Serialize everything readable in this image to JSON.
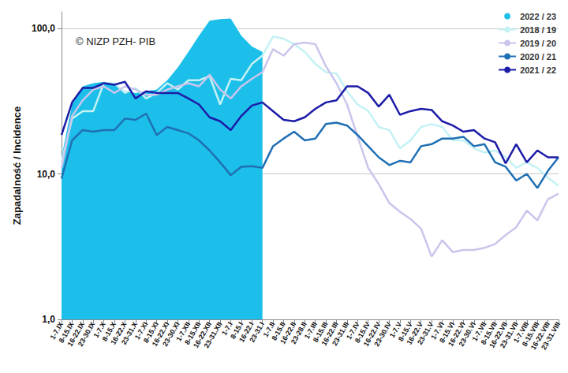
{
  "chart_data": {
    "type": "line",
    "y_label": "Zapadalność / Incidence",
    "annotation": "© NIZP PZH- PIB",
    "log": "y",
    "grid": true,
    "legend": "top-right",
    "ylim": [
      1,
      130
    ],
    "yticks": [
      {
        "value": 1,
        "label": "1,0"
      },
      {
        "value": 10,
        "label": "10,0"
      },
      {
        "value": 100,
        "label": "100,0"
      }
    ],
    "categories": [
      "1-7.IX",
      "8-15.IX",
      "16-22.IX",
      "23-30.IX",
      "1-7.X",
      "8-15.X",
      "16-22.X",
      "23-31.X",
      "1-7.XI",
      "8-15.XI",
      "16-22.XI",
      "23-30.XI",
      "1-7.XII",
      "8-15.XII",
      "16-22.XII",
      "23-31.XII",
      "1-7.I",
      "8-15.I",
      "16-22.I",
      "23-31.I",
      "1-7.II",
      "8-15.II",
      "16-22.II",
      "23-28.II",
      "1-7.III",
      "8-15.III",
      "16-22.III",
      "23-31.III",
      "1-7.IV",
      "8-15.IV",
      "16-22.IV",
      "23-30.IV",
      "1-7.V",
      "8-15.V",
      "16-22.V",
      "23-31.V",
      "1-7.VI",
      "8-15.VI",
      "16-22.VI",
      "23-30.VI",
      "1-7.VII",
      "8-15.VII",
      "16-22.VII",
      "23-31.VII",
      "1-7.VIII",
      "8-15.VIII",
      "16-22.VIII",
      "23-31.VIII"
    ],
    "series": [
      {
        "name": "2022 / 23",
        "type": "area",
        "color": "#1cbfea",
        "values": [
          13,
          30,
          40,
          42,
          43,
          42,
          37,
          36,
          37,
          38,
          44,
          54,
          69,
          89,
          113,
          116,
          117,
          89,
          75,
          69,
          null,
          null,
          null,
          null,
          null,
          null,
          null,
          null,
          null,
          null,
          null,
          null,
          null,
          null,
          null,
          null,
          null,
          null,
          null,
          null,
          null,
          null,
          null,
          null,
          null,
          null,
          null,
          null
        ]
      },
      {
        "name": "2018 / 19",
        "type": "line",
        "color": "#c4f2f4",
        "values": [
          12,
          24,
          27,
          27,
          42,
          42,
          36,
          39,
          33,
          36,
          42,
          38,
          44,
          44,
          47,
          30,
          45,
          44,
          57,
          65,
          88,
          85,
          78,
          69,
          57,
          50,
          49,
          37,
          30,
          27,
          21,
          20,
          15,
          17,
          21,
          22,
          21,
          17,
          17,
          15,
          14,
          14.5,
          13,
          11,
          12,
          11,
          9.4,
          8.3
        ]
      },
      {
        "name": "2019 / 20",
        "type": "line",
        "color": "#c9c5ec",
        "values": [
          11,
          25,
          32,
          38,
          40,
          36,
          40,
          38,
          35,
          35,
          38,
          40,
          42,
          40,
          48,
          38,
          33,
          40,
          45,
          50,
          72,
          65,
          78,
          80,
          78,
          55,
          42,
          30,
          18,
          11,
          8.5,
          6.3,
          5.5,
          4.9,
          4.2,
          2.7,
          3.5,
          2.9,
          3.0,
          3.0,
          3.1,
          3.3,
          3.8,
          4.3,
          5.6,
          4.8,
          6.7,
          7.3
        ]
      },
      {
        "name": "2020 / 21",
        "type": "line",
        "color": "#1f6fb4",
        "values": [
          9.3,
          17,
          20,
          19.5,
          20,
          20,
          24,
          23.5,
          26,
          18.5,
          21,
          20,
          19,
          17,
          14.5,
          12,
          9.8,
          11.2,
          11.3,
          11,
          15.5,
          17.5,
          19.5,
          17,
          17.5,
          22,
          22.5,
          21.5,
          18.5,
          15.5,
          13,
          11.5,
          12.3,
          12,
          15.5,
          16,
          17.5,
          17.5,
          18,
          15.5,
          16,
          12,
          11.2,
          9,
          10,
          8,
          10.5,
          13
        ]
      },
      {
        "name": "2021 / 22",
        "type": "line",
        "color": "#1c1ca8",
        "values": [
          18.5,
          31,
          39,
          39,
          42,
          41,
          43,
          33,
          37,
          36,
          36,
          36,
          33,
          30,
          24.5,
          23,
          20,
          25,
          29.5,
          31,
          27,
          23.5,
          23,
          24.5,
          28,
          31,
          32,
          40,
          40,
          36,
          29,
          35,
          25.5,
          27,
          28,
          27.5,
          23,
          21.5,
          19.5,
          20,
          17.5,
          16.5,
          11.8,
          16,
          12,
          14.5,
          13,
          13
        ]
      }
    ]
  }
}
